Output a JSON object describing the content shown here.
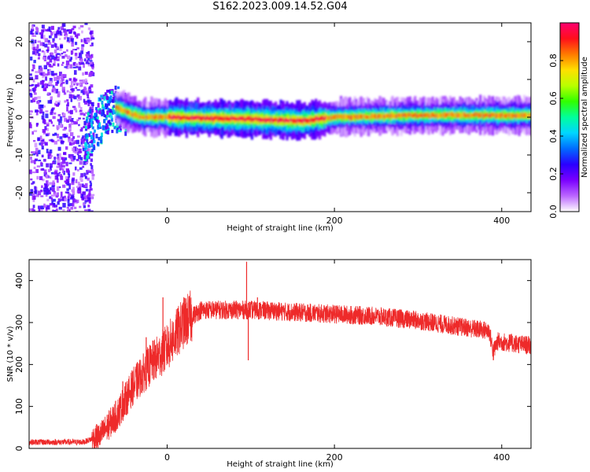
{
  "title": "S162.2023.009.14.52.G04",
  "chart_data": [
    {
      "type": "heatmap",
      "xlabel": "Height of straight line (km)",
      "ylabel": "Frequency (Hz)",
      "xlim": [
        -165,
        435
      ],
      "ylim": [
        -25,
        25
      ],
      "xticks": [
        0,
        200,
        400
      ],
      "yticks": [
        -20,
        -10,
        0,
        10,
        20
      ],
      "colorbar": {
        "label": "Normalized spectral amplitude",
        "range": [
          0,
          1
        ],
        "ticks": [
          "0.0",
          "0.2",
          "0.4",
          "0.6",
          "0.8"
        ],
        "colors": [
          "#ffffff",
          "#bb66ff",
          "#7a00ff",
          "#2a00ff",
          "#006bff",
          "#00d6ff",
          "#00ff9c",
          "#31ff00",
          "#b9ff00",
          "#ffe000",
          "#ff7a00",
          "#ff0f1b",
          "#ff0070"
        ]
      },
      "ridge": [
        {
          "x": -100,
          "f": -5
        },
        {
          "x": -80,
          "f": 0
        },
        {
          "x": -65,
          "f": 3
        },
        {
          "x": -55,
          "f": 2
        },
        {
          "x": -45,
          "f": 1
        },
        {
          "x": -30,
          "f": 0
        },
        {
          "x": 0,
          "f": 0
        },
        {
          "x": 100,
          "f": -0.5
        },
        {
          "x": 160,
          "f": -1
        },
        {
          "x": 200,
          "f": 0
        },
        {
          "x": 300,
          "f": 0.5
        },
        {
          "x": 435,
          "f": 0.5
        }
      ]
    },
    {
      "type": "line",
      "xlabel": "Height of straight line (km)",
      "ylabel": "SNR (10 * v/v)",
      "xlim": [
        -165,
        435
      ],
      "ylim": [
        0,
        450
      ],
      "xticks": [
        0,
        200,
        400
      ],
      "yticks": [
        0,
        100,
        200,
        300,
        400
      ],
      "color": "#ee2a2a",
      "trend": [
        {
          "x": -165,
          "y": 15
        },
        {
          "x": -100,
          "y": 15
        },
        {
          "x": -80,
          "y": 30
        },
        {
          "x": -60,
          "y": 80
        },
        {
          "x": -40,
          "y": 150
        },
        {
          "x": -20,
          "y": 200
        },
        {
          "x": 0,
          "y": 240
        },
        {
          "x": 20,
          "y": 300
        },
        {
          "x": 40,
          "y": 330
        },
        {
          "x": 100,
          "y": 330
        },
        {
          "x": 150,
          "y": 325
        },
        {
          "x": 200,
          "y": 320
        },
        {
          "x": 250,
          "y": 315
        },
        {
          "x": 300,
          "y": 305
        },
        {
          "x": 350,
          "y": 290
        },
        {
          "x": 385,
          "y": 280
        },
        {
          "x": 390,
          "y": 230
        },
        {
          "x": 395,
          "y": 255
        },
        {
          "x": 435,
          "y": 245
        }
      ],
      "spikes": [
        {
          "x": -53,
          "y": 160
        },
        {
          "x": -25,
          "y": 265
        },
        {
          "x": -5,
          "y": 360
        },
        {
          "x": 95,
          "y": 445
        },
        {
          "x": 97,
          "y": 210
        },
        {
          "x": 108,
          "y": 360
        },
        {
          "x": 390,
          "y": 210
        }
      ]
    }
  ]
}
